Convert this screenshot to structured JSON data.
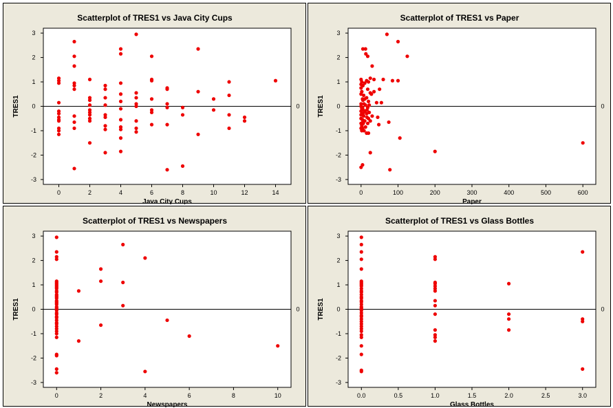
{
  "chart_data": [
    {
      "type": "scatter",
      "title": "Scatterplot of TRES1 vs Java City Cups",
      "xlabel": "Java City Cups",
      "ylabel": "TRES1",
      "xlim": [
        -1,
        15
      ],
      "ylim": [
        -3.2,
        3.2
      ],
      "xticks": [
        "0",
        "2",
        "4",
        "6",
        "8",
        "10",
        "12",
        "14"
      ],
      "yticks": [
        "-3",
        "-2",
        "-1",
        "0",
        "1",
        "2",
        "3"
      ],
      "reference_line": {
        "y": 0,
        "label": "0"
      },
      "points": [
        [
          0,
          1.15
        ],
        [
          0,
          1.05
        ],
        [
          0,
          0.95
        ],
        [
          0,
          0.15
        ],
        [
          0,
          -0.2
        ],
        [
          0,
          -0.3
        ],
        [
          0,
          -0.45
        ],
        [
          0,
          -0.55
        ],
        [
          0,
          -0.6
        ],
        [
          0,
          -0.9
        ],
        [
          0,
          -1.0
        ],
        [
          0,
          -1.15
        ],
        [
          1,
          2.65
        ],
        [
          1,
          2.05
        ],
        [
          1,
          1.65
        ],
        [
          1,
          0.95
        ],
        [
          1,
          0.85
        ],
        [
          1,
          0.7
        ],
        [
          1,
          -0.4
        ],
        [
          1,
          -0.65
        ],
        [
          1,
          -0.9
        ],
        [
          1,
          -2.55
        ],
        [
          2,
          1.1
        ],
        [
          2,
          0.35
        ],
        [
          2,
          0.25
        ],
        [
          2,
          0.05
        ],
        [
          2,
          -0.15
        ],
        [
          2,
          -0.25
        ],
        [
          2,
          -0.35
        ],
        [
          2,
          -0.5
        ],
        [
          2,
          -0.6
        ],
        [
          2,
          -1.5
        ],
        [
          3,
          0.85
        ],
        [
          3,
          0.7
        ],
        [
          3,
          0.35
        ],
        [
          3,
          0.05
        ],
        [
          3,
          -0.35
        ],
        [
          3,
          -0.45
        ],
        [
          3,
          -0.8
        ],
        [
          3,
          -0.95
        ],
        [
          3,
          -1.9
        ],
        [
          4,
          2.35
        ],
        [
          4,
          2.15
        ],
        [
          4,
          0.95
        ],
        [
          4,
          0.5
        ],
        [
          4,
          0.2
        ],
        [
          4,
          -0.1
        ],
        [
          4,
          -0.55
        ],
        [
          4,
          -0.85
        ],
        [
          4,
          -0.95
        ],
        [
          4,
          -1.3
        ],
        [
          4,
          -1.85
        ],
        [
          5,
          2.95
        ],
        [
          5,
          0.55
        ],
        [
          5,
          0.35
        ],
        [
          5,
          0.1
        ],
        [
          5,
          0.0
        ],
        [
          5,
          -0.6
        ],
        [
          5,
          -0.9
        ],
        [
          5,
          -1.05
        ],
        [
          6,
          2.05
        ],
        [
          6,
          1.1
        ],
        [
          6,
          1.05
        ],
        [
          6,
          0.3
        ],
        [
          6,
          -0.15
        ],
        [
          6,
          -0.25
        ],
        [
          6,
          -0.75
        ],
        [
          7,
          0.75
        ],
        [
          7,
          0.7
        ],
        [
          7,
          0.1
        ],
        [
          7,
          -0.05
        ],
        [
          7,
          -0.75
        ],
        [
          7,
          -2.6
        ],
        [
          8,
          -0.05
        ],
        [
          8,
          -0.35
        ],
        [
          8,
          -2.45
        ],
        [
          9,
          2.35
        ],
        [
          9,
          0.6
        ],
        [
          9,
          -1.15
        ],
        [
          10,
          0.3
        ],
        [
          10,
          -0.15
        ],
        [
          11,
          1.0
        ],
        [
          11,
          0.45
        ],
        [
          11,
          -0.35
        ],
        [
          11,
          -0.9
        ],
        [
          12,
          -0.45
        ],
        [
          12,
          -0.6
        ],
        [
          14,
          1.05
        ]
      ]
    },
    {
      "type": "scatter",
      "title": "Scatterplot of TRES1 vs Paper",
      "xlabel": "Paper",
      "ylabel": "TRES1",
      "xlim": [
        -35,
        635
      ],
      "ylim": [
        -3.2,
        3.2
      ],
      "xticks": [
        "0",
        "100",
        "200",
        "300",
        "400",
        "500",
        "600"
      ],
      "yticks": [
        "-3",
        "-2",
        "-1",
        "0",
        "1",
        "2",
        "3"
      ],
      "reference_line": {
        "y": 0,
        "label": "0"
      },
      "points": [
        [
          0,
          1.1
        ],
        [
          0,
          0.9
        ],
        [
          0,
          0.75
        ],
        [
          0,
          0.5
        ],
        [
          0,
          0.1
        ],
        [
          0,
          0.0
        ],
        [
          0,
          -0.2
        ],
        [
          0,
          -0.35
        ],
        [
          0,
          -0.5
        ],
        [
          0,
          -0.7
        ],
        [
          0,
          -0.9
        ],
        [
          0,
          -2.5
        ],
        [
          2,
          1.0
        ],
        [
          2,
          0.6
        ],
        [
          2,
          -0.1
        ],
        [
          2,
          -0.3
        ],
        [
          2,
          -0.8
        ],
        [
          2,
          -1.0
        ],
        [
          4,
          0.3
        ],
        [
          4,
          -0.05
        ],
        [
          4,
          -0.55
        ],
        [
          4,
          -0.9
        ],
        [
          4,
          -2.4
        ],
        [
          5,
          2.35
        ],
        [
          5,
          0.85
        ],
        [
          5,
          0.25
        ],
        [
          5,
          -0.3
        ],
        [
          5,
          -0.6
        ],
        [
          6,
          -0.15
        ],
        [
          6,
          -0.7
        ],
        [
          7,
          0.45
        ],
        [
          7,
          -0.4
        ],
        [
          8,
          0.1
        ],
        [
          8,
          -1.0
        ],
        [
          10,
          0.95
        ],
        [
          10,
          0.3
        ],
        [
          10,
          -0.2
        ],
        [
          10,
          -0.6
        ],
        [
          12,
          2.35
        ],
        [
          12,
          0.05
        ],
        [
          12,
          -0.85
        ],
        [
          13,
          2.15
        ],
        [
          15,
          1.05
        ],
        [
          15,
          0.35
        ],
        [
          15,
          -0.3
        ],
        [
          15,
          -1.1
        ],
        [
          16,
          -0.15
        ],
        [
          16,
          -0.45
        ],
        [
          18,
          2.05
        ],
        [
          18,
          0.7
        ],
        [
          18,
          -0.05
        ],
        [
          18,
          -0.7
        ],
        [
          20,
          1.0
        ],
        [
          20,
          0.2
        ],
        [
          20,
          -0.5
        ],
        [
          20,
          -1.1
        ],
        [
          22,
          0.05
        ],
        [
          22,
          -0.25
        ],
        [
          25,
          1.15
        ],
        [
          25,
          0.55
        ],
        [
          25,
          -0.6
        ],
        [
          25,
          -1.9
        ],
        [
          28,
          0.5
        ],
        [
          30,
          1.65
        ],
        [
          30,
          -0.4
        ],
        [
          35,
          1.1
        ],
        [
          35,
          0.6
        ],
        [
          42,
          0.15
        ],
        [
          45,
          -0.45
        ],
        [
          48,
          -0.75
        ],
        [
          50,
          0.7
        ],
        [
          55,
          0.15
        ],
        [
          60,
          1.1
        ],
        [
          70,
          2.95
        ],
        [
          75,
          -0.65
        ],
        [
          78,
          -2.6
        ],
        [
          85,
          1.05
        ],
        [
          100,
          2.65
        ],
        [
          100,
          1.05
        ],
        [
          105,
          -1.3
        ],
        [
          125,
          2.05
        ],
        [
          200,
          -1.85
        ],
        [
          600,
          -1.5
        ]
      ]
    },
    {
      "type": "scatter",
      "title": "Scatterplot of TRES1 vs Newspapers",
      "xlabel": "Newspapers",
      "ylabel": "TRES1",
      "xlim": [
        -0.6,
        10.6
      ],
      "ylim": [
        -3.2,
        3.2
      ],
      "xticks": [
        "0",
        "2",
        "4",
        "6",
        "8",
        "10"
      ],
      "yticks": [
        "-3",
        "-2",
        "-1",
        "0",
        "1",
        "2",
        "3"
      ],
      "reference_line": {
        "y": 0,
        "label": "0"
      },
      "points": [
        [
          0,
          2.95
        ],
        [
          0,
          2.35
        ],
        [
          0,
          2.15
        ],
        [
          0,
          2.05
        ],
        [
          0,
          1.15
        ],
        [
          0,
          1.1
        ],
        [
          0,
          1.05
        ],
        [
          0,
          1.0
        ],
        [
          0,
          0.95
        ],
        [
          0,
          0.9
        ],
        [
          0,
          0.85
        ],
        [
          0,
          0.75
        ],
        [
          0,
          0.7
        ],
        [
          0,
          0.6
        ],
        [
          0,
          0.55
        ],
        [
          0,
          0.5
        ],
        [
          0,
          0.45
        ],
        [
          0,
          0.35
        ],
        [
          0,
          0.3
        ],
        [
          0,
          0.25
        ],
        [
          0,
          0.2
        ],
        [
          0,
          0.1
        ],
        [
          0,
          0.05
        ],
        [
          0,
          0.0
        ],
        [
          0,
          -0.05
        ],
        [
          0,
          -0.15
        ],
        [
          0,
          -0.2
        ],
        [
          0,
          -0.3
        ],
        [
          0,
          -0.35
        ],
        [
          0,
          -0.45
        ],
        [
          0,
          -0.55
        ],
        [
          0,
          -0.6
        ],
        [
          0,
          -0.7
        ],
        [
          0,
          -0.8
        ],
        [
          0,
          -0.9
        ],
        [
          0,
          -1.0
        ],
        [
          0,
          -1.15
        ],
        [
          0,
          -1.85
        ],
        [
          0,
          -1.9
        ],
        [
          0,
          -2.45
        ],
        [
          0,
          -2.6
        ],
        [
          1,
          0.75
        ],
        [
          1,
          -1.3
        ],
        [
          2,
          1.65
        ],
        [
          2,
          1.15
        ],
        [
          2,
          -0.65
        ],
        [
          3,
          2.65
        ],
        [
          3,
          1.1
        ],
        [
          3,
          0.15
        ],
        [
          4,
          2.1
        ],
        [
          4,
          -2.55
        ],
        [
          5,
          -0.45
        ],
        [
          6,
          -1.1
        ],
        [
          10,
          -1.5
        ]
      ]
    },
    {
      "type": "scatter",
      "title": "Scatterplot of TRES1 vs Glass Bottles",
      "xlabel": "Glass Bottles",
      "ylabel": "TRES1",
      "xlim": [
        -0.18,
        3.18
      ],
      "ylim": [
        -3.2,
        3.2
      ],
      "xticks": [
        "0.0",
        "0.5",
        "1.0",
        "1.5",
        "2.0",
        "2.5",
        "3.0"
      ],
      "yticks": [
        "-3",
        "-2",
        "-1",
        "0",
        "1",
        "2",
        "3"
      ],
      "reference_line": {
        "y": 0,
        "label": "0"
      },
      "points": [
        [
          0,
          2.95
        ],
        [
          0,
          2.65
        ],
        [
          0,
          2.35
        ],
        [
          0,
          2.05
        ],
        [
          0,
          1.65
        ],
        [
          0,
          1.15
        ],
        [
          0,
          1.1
        ],
        [
          0,
          1.05
        ],
        [
          0,
          1.0
        ],
        [
          0,
          0.95
        ],
        [
          0,
          0.85
        ],
        [
          0,
          0.75
        ],
        [
          0,
          0.7
        ],
        [
          0,
          0.6
        ],
        [
          0,
          0.5
        ],
        [
          0,
          0.45
        ],
        [
          0,
          0.35
        ],
        [
          0,
          0.3
        ],
        [
          0,
          0.2
        ],
        [
          0,
          0.1
        ],
        [
          0,
          0.05
        ],
        [
          0,
          0.0
        ],
        [
          0,
          -0.05
        ],
        [
          0,
          -0.15
        ],
        [
          0,
          -0.25
        ],
        [
          0,
          -0.3
        ],
        [
          0,
          -0.4
        ],
        [
          0,
          -0.5
        ],
        [
          0,
          -0.6
        ],
        [
          0,
          -0.7
        ],
        [
          0,
          -0.8
        ],
        [
          0,
          -0.9
        ],
        [
          0,
          -1.05
        ],
        [
          0,
          -1.15
        ],
        [
          0,
          -1.5
        ],
        [
          0,
          -1.85
        ],
        [
          0,
          -2.5
        ],
        [
          0,
          -2.55
        ],
        [
          1,
          2.15
        ],
        [
          1,
          2.05
        ],
        [
          1,
          1.1
        ],
        [
          1,
          1.05
        ],
        [
          1,
          0.95
        ],
        [
          1,
          0.85
        ],
        [
          1,
          0.75
        ],
        [
          1,
          0.35
        ],
        [
          1,
          0.15
        ],
        [
          1,
          -0.2
        ],
        [
          1,
          -0.85
        ],
        [
          1,
          -1.05
        ],
        [
          1,
          -1.15
        ],
        [
          1,
          -1.3
        ],
        [
          2,
          1.05
        ],
        [
          2,
          -0.2
        ],
        [
          2,
          -0.4
        ],
        [
          2,
          -0.85
        ],
        [
          3,
          2.35
        ],
        [
          3,
          -0.4
        ],
        [
          3,
          -0.5
        ],
        [
          3,
          -2.45
        ]
      ]
    }
  ],
  "style": {
    "point_color": "#ee0000",
    "panel_bg": "#ece9dc",
    "plot_bg": "#ffffff"
  }
}
